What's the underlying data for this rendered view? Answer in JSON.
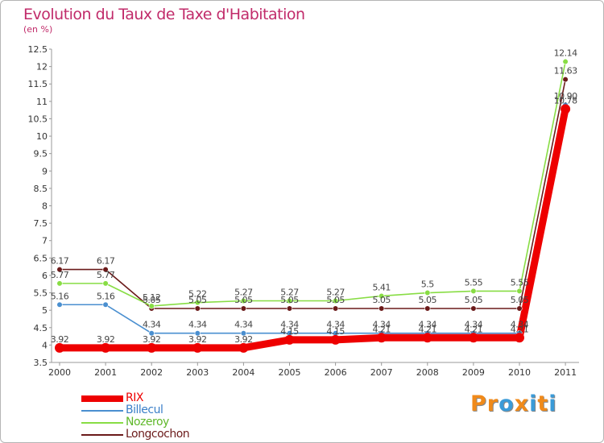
{
  "chart_data": {
    "type": "line",
    "title": "Evolution du Taux de Taxe d'Habitation",
    "subtitle": "(en %)",
    "categories": [
      "2000",
      "2001",
      "2002",
      "2003",
      "2004",
      "2005",
      "2006",
      "2007",
      "2008",
      "2009",
      "2010",
      "2011"
    ],
    "ylim": [
      3.5,
      12.5
    ],
    "yticks": [
      "3.5",
      "4",
      "4.5",
      "5",
      "5.5",
      "6",
      "6.5",
      "7",
      "7.5",
      "8",
      "8.5",
      "9",
      "9.5",
      "10",
      "10.5",
      "11",
      "11.5",
      "12",
      "12.5"
    ],
    "series": [
      {
        "name": "RIX",
        "color": "#ee0000",
        "thick": true,
        "values": [
          3.92,
          3.92,
          3.92,
          3.92,
          3.92,
          4.15,
          4.15,
          4.21,
          4.21,
          4.21,
          4.21,
          10.78
        ],
        "labels": [
          "3.92",
          "3.92",
          "3.92",
          "3.92",
          "3.92",
          "4.15",
          "4.15",
          "4.21",
          "4.21",
          "4.21",
          "4.21",
          "10.78"
        ]
      },
      {
        "name": "Billecul",
        "color": "#4a8fd0",
        "thick": false,
        "values": [
          5.16,
          5.16,
          4.34,
          4.34,
          4.34,
          4.34,
          4.34,
          4.34,
          4.34,
          4.34,
          4.34,
          10.9
        ],
        "labels": [
          "5.16",
          "5.16",
          "4.34",
          "4.34",
          "4.34",
          "4.34",
          "4.34",
          "4.34",
          "4.34",
          "4.34",
          "4.34",
          "10.90"
        ]
      },
      {
        "name": "Nozeroy",
        "color": "#88dd44",
        "thick": false,
        "values": [
          5.77,
          5.77,
          5.12,
          5.22,
          5.27,
          5.27,
          5.27,
          5.41,
          5.5,
          5.55,
          5.55,
          12.14
        ],
        "labels": [
          "5.77",
          "5.77",
          "5.12",
          "5.22",
          "5.27",
          "5.27",
          "5.27",
          "5.41",
          "5.5",
          "5.55",
          "5.55",
          "12.14"
        ]
      },
      {
        "name": "Longcochon",
        "color": "#6b1a1a",
        "thick": false,
        "values": [
          6.17,
          6.17,
          5.05,
          5.05,
          5.05,
          5.05,
          5.05,
          5.05,
          5.05,
          5.05,
          5.05,
          11.63
        ],
        "labels": [
          "6.17",
          "6.17",
          "5.05",
          "5.05",
          "5.05",
          "5.05",
          "5.05",
          "5.05",
          "5.05",
          "5.05",
          "5.05",
          "11.63"
        ]
      }
    ]
  },
  "logo": {
    "letters": [
      "P",
      "r",
      "o",
      "x",
      "i",
      "t",
      "i"
    ],
    "colors": [
      "#f08a1a",
      "#f08a1a",
      "#3a9bd8",
      "#f08a1a",
      "#3a9bd8",
      "#f08a1a",
      "#3a9bd8"
    ]
  }
}
